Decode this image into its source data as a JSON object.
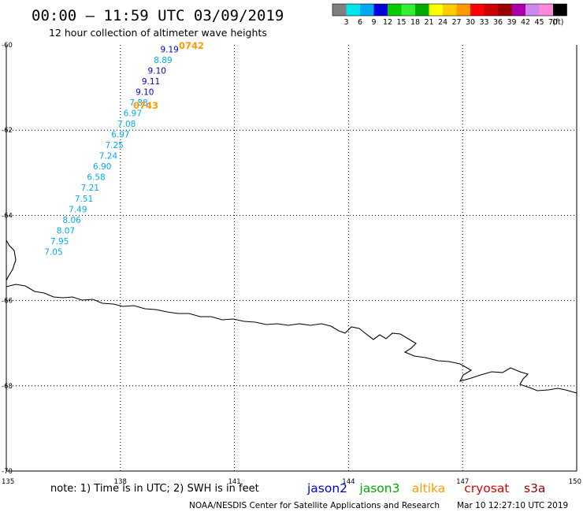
{
  "header": {
    "title": "00:00 – 11:59 UTC 03/09/2019",
    "subtitle": "12 hour collection of altimeter wave heights"
  },
  "colorbar": {
    "colors": [
      "#7f7f7f",
      "#00e5e5",
      "#00aaf0",
      "#0000dd",
      "#00cc00",
      "#33ee33",
      "#00aa00",
      "#ffff00",
      "#ffcc00",
      "#ff9900",
      "#ff0000",
      "#cc0000",
      "#990000",
      "#aa00aa",
      "#cc88ee",
      "#ff88dd",
      "#000000"
    ],
    "labels": [
      "3",
      "6",
      "9",
      "12",
      "15",
      "18",
      "21",
      "24",
      "27",
      "30",
      "33",
      "36",
      "39",
      "42",
      "45",
      "70"
    ],
    "unit": "(ft)"
  },
  "axes": {
    "x_ticks": [
      "135",
      "138",
      "141",
      "144",
      "147",
      "150"
    ],
    "y_ticks": [
      "-60",
      "-62",
      "-64",
      "-66",
      "-68",
      "-70"
    ]
  },
  "labels": {
    "pass_ids": [
      "0742",
      "0743"
    ],
    "pass_color": "#ff9900"
  },
  "swh_points": [
    {
      "lon": 139.05,
      "lat": -60.1,
      "value": "9.19",
      "color": "#0000dd"
    },
    {
      "lon": 138.88,
      "lat": -60.35,
      "value": "8.89",
      "color": "#00aaf0"
    },
    {
      "lon": 138.72,
      "lat": -60.6,
      "value": "9.10",
      "color": "#0000dd"
    },
    {
      "lon": 138.56,
      "lat": -60.85,
      "value": "9.11",
      "color": "#0000dd"
    },
    {
      "lon": 138.4,
      "lat": -61.1,
      "value": "9.10",
      "color": "#0000dd"
    },
    {
      "lon": 138.24,
      "lat": -61.35,
      "value": "7.88",
      "color": "#00aaf0"
    },
    {
      "lon": 138.08,
      "lat": -61.6,
      "value": "6.97",
      "color": "#00aaf0"
    },
    {
      "lon": 137.92,
      "lat": -61.85,
      "value": "7.08",
      "color": "#00aaf0"
    },
    {
      "lon": 137.76,
      "lat": -62.1,
      "value": "6.97",
      "color": "#00aaf0"
    },
    {
      "lon": 137.6,
      "lat": -62.35,
      "value": "7.25",
      "color": "#00aaf0"
    },
    {
      "lon": 137.44,
      "lat": -62.6,
      "value": "7.24",
      "color": "#00aaf0"
    },
    {
      "lon": 137.28,
      "lat": -62.85,
      "value": "6.90",
      "color": "#00aaf0"
    },
    {
      "lon": 137.12,
      "lat": -63.1,
      "value": "6.58",
      "color": "#00aaf0"
    },
    {
      "lon": 136.96,
      "lat": -63.35,
      "value": "7.21",
      "color": "#00aaf0"
    },
    {
      "lon": 136.8,
      "lat": -63.6,
      "value": "7.51",
      "color": "#00aaf0"
    },
    {
      "lon": 136.64,
      "lat": -63.85,
      "value": "7.49",
      "color": "#00aaf0"
    },
    {
      "lon": 136.48,
      "lat": -64.1,
      "value": "8.06",
      "color": "#00aaf0"
    },
    {
      "lon": 136.32,
      "lat": -64.35,
      "value": "8.07",
      "color": "#00aaf0"
    },
    {
      "lon": 136.16,
      "lat": -64.6,
      "value": "7.95",
      "color": "#00aaf0"
    },
    {
      "lon": 136.0,
      "lat": -64.85,
      "value": "7.05",
      "color": "#00aaf0"
    }
  ],
  "footer": {
    "note": "note: 1) Time is in UTC; 2) SWH is in feet",
    "satellites": [
      {
        "name": "jason2",
        "color": "#0000dd"
      },
      {
        "name": "jason3",
        "color": "#00aa00"
      },
      {
        "name": "altika",
        "color": "#ff9900"
      },
      {
        "name": "cryosat",
        "color": "#dd0000"
      },
      {
        "name": "s3a",
        "color": "#990000"
      }
    ],
    "credit": "NOAA/NESDIS Center for Satellite Applications and Research",
    "timestamp": "Mar 10 12:27:10 UTC 2019"
  }
}
